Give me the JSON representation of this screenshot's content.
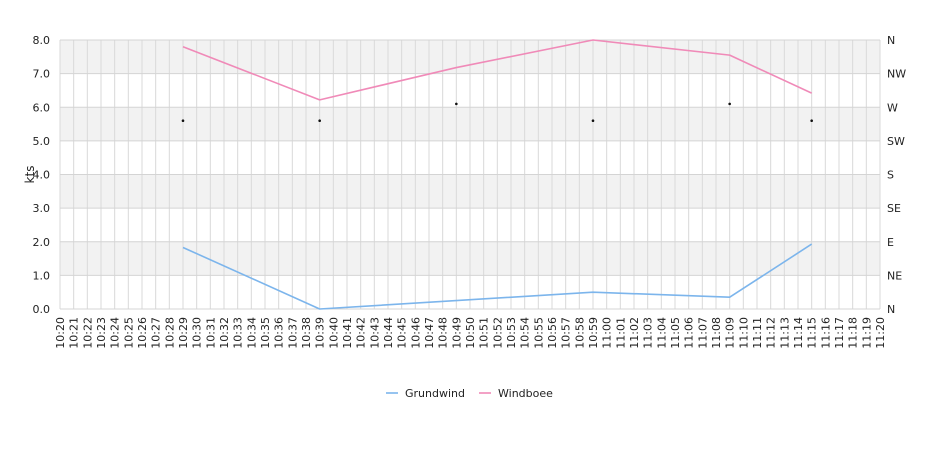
{
  "chart_data": {
    "type": "line",
    "ylabel": "kts",
    "ylim": [
      0,
      8
    ],
    "y_ticks": [
      "0.0",
      "1.0",
      "2.0",
      "3.0",
      "4.0",
      "5.0",
      "6.0",
      "7.0",
      "8.0"
    ],
    "right_axis_ticks": [
      "N",
      "NE",
      "E",
      "SE",
      "S",
      "SW",
      "W",
      "NW",
      "N"
    ],
    "x_start_minutes": 620,
    "x_end_minutes": 680,
    "x_ticks": [
      "10:20",
      "10:21",
      "10:22",
      "10:23",
      "10:24",
      "10:25",
      "10:26",
      "10:27",
      "10:28",
      "10:29",
      "10:30",
      "10:31",
      "10:32",
      "10:33",
      "10:34",
      "10:35",
      "10:36",
      "10:37",
      "10:38",
      "10:39",
      "10:40",
      "10:41",
      "10:42",
      "10:43",
      "10:44",
      "10:45",
      "10:46",
      "10:47",
      "10:48",
      "10:49",
      "10:50",
      "10:51",
      "10:52",
      "10:53",
      "10:54",
      "10:55",
      "10:56",
      "10:57",
      "10:58",
      "10:59",
      "11:00",
      "11:01",
      "11:02",
      "11:03",
      "11:04",
      "11:05",
      "11:06",
      "11:07",
      "11:08",
      "11:09",
      "11:10",
      "11:11",
      "11:12",
      "11:13",
      "11:14",
      "11:15",
      "11:16",
      "11:17",
      "11:18",
      "11:19",
      "11:20"
    ],
    "series": [
      {
        "name": "Grundwind",
        "color": "#7cb5ec",
        "x": [
          "10:29",
          "10:39",
          "10:59",
          "11:09",
          "11:15"
        ],
        "values": [
          1.83,
          0.0,
          0.5,
          0.35,
          1.93
        ]
      },
      {
        "name": "Windboee",
        "color": "#f08ab8",
        "x": [
          "10:29",
          "10:39",
          "10:49",
          "10:59",
          "11:09",
          "11:15"
        ],
        "values": [
          7.8,
          6.22,
          7.18,
          8.0,
          7.55,
          6.42
        ]
      }
    ],
    "direction_markers": {
      "x": [
        "10:29",
        "10:39",
        "10:49",
        "10:59",
        "11:09",
        "11:15"
      ],
      "values": [
        5.6,
        5.6,
        6.1,
        5.6,
        6.1,
        5.6
      ]
    },
    "grid": true,
    "legend_position": "bottom"
  }
}
